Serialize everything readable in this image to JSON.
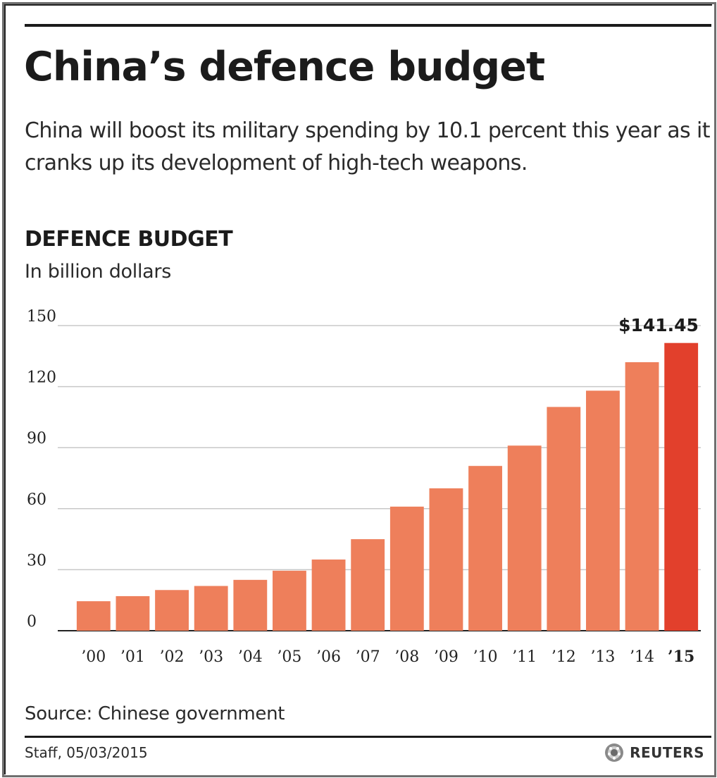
{
  "header": {
    "title": "China’s defence budget",
    "subtitle": "China will boost its military spending by 10.1 percent this year as it cranks up its development of high-tech weapons."
  },
  "footer": {
    "source": "Source: Chinese government",
    "credit": "Staff, 05/03/2015",
    "brand": "REUTERS",
    "brand_icon": "reuters-logo-icon"
  },
  "colors": {
    "bar": "#ee7f5b",
    "highlight_bar": "#e2402c",
    "grid": "#c8c8c8",
    "axis": "#222222"
  },
  "chart_data": {
    "type": "bar",
    "title": "DEFENCE BUDGET",
    "units": "In billion dollars",
    "categories": [
      "’00",
      "’01",
      "’02",
      "’03",
      "’04",
      "’05",
      "’06",
      "’07",
      "’08",
      "’09",
      "’10",
      "’11",
      "’12",
      "’13",
      "’14",
      "’15"
    ],
    "values": [
      14.5,
      17,
      20,
      22,
      25,
      29.5,
      35,
      45,
      61,
      70,
      81,
      91,
      110,
      118,
      132,
      141.45
    ],
    "highlight_index": 15,
    "highlight_label": "$141.45",
    "yticks": [
      0,
      30,
      60,
      90,
      120,
      150
    ],
    "ylim": [
      0,
      150
    ],
    "grid": true,
    "legend": "none"
  }
}
